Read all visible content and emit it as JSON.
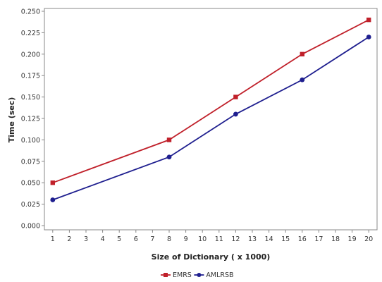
{
  "chart_data": {
    "type": "line",
    "x": [
      1,
      8,
      12,
      16,
      20
    ],
    "x_ticks": [
      1,
      2,
      3,
      4,
      5,
      6,
      7,
      8,
      9,
      10,
      11,
      12,
      13,
      14,
      15,
      16,
      17,
      18,
      19,
      20
    ],
    "y_ticks": [
      "0.000",
      "0.025",
      "0.050",
      "0.075",
      "0.100",
      "0.125",
      "0.150",
      "0.175",
      "0.200",
      "0.225",
      "0.250"
    ],
    "xlabel": "Size of Dictionary ( x 1000)",
    "ylabel": "Time (sec)",
    "xlim": [
      0.5,
      20.5
    ],
    "ylim": [
      0,
      0.25
    ],
    "grid": false,
    "legend_position": "bottom-center",
    "series": [
      {
        "name": "EMRS",
        "values": [
          0.05,
          0.1,
          0.15,
          0.2,
          0.24
        ],
        "color": "#c0202a",
        "marker": "square"
      },
      {
        "name": "AMLRSB",
        "values": [
          0.03,
          0.08,
          0.13,
          0.17,
          0.22
        ],
        "color": "#1f1f8f",
        "marker": "circle"
      }
    ]
  }
}
